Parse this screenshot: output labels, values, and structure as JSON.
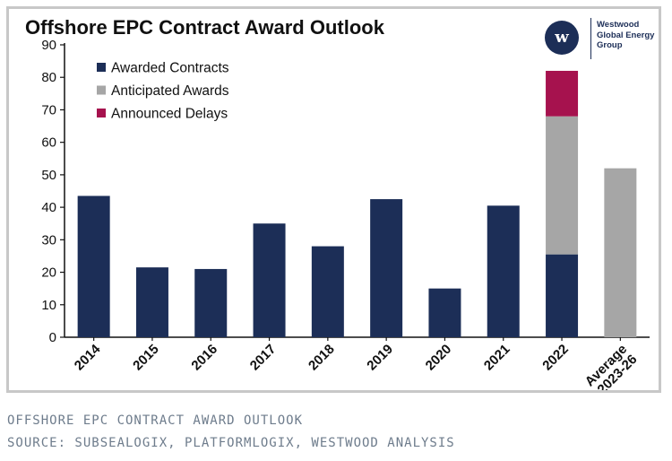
{
  "chart_data": {
    "type": "bar",
    "stacked": true,
    "title": "Offshore EPC Contract Award Outlook",
    "xlabel": "",
    "ylabel": "",
    "ylim": [
      0,
      90
    ],
    "yticks": [
      0,
      10,
      20,
      30,
      40,
      50,
      60,
      70,
      80,
      90
    ],
    "grid": false,
    "legend_position": "top-left",
    "categories": [
      "2014",
      "2015",
      "2016",
      "2017",
      "2018",
      "2019",
      "2020",
      "2021",
      "2022",
      "Average 2023-26"
    ],
    "series": [
      {
        "name": "Awarded Contracts",
        "color": "#1c2e57",
        "values": [
          43.5,
          21.5,
          21,
          35,
          28,
          42.5,
          15,
          40.5,
          25.5,
          0
        ]
      },
      {
        "name": "Anticipated Awards",
        "color": "#a6a6a6",
        "values": [
          0,
          0,
          0,
          0,
          0,
          0,
          0,
          0,
          42.5,
          52
        ]
      },
      {
        "name": "Announced Delays",
        "color": "#a6124e",
        "values": [
          0,
          0,
          0,
          0,
          0,
          0,
          0,
          0,
          14,
          0
        ]
      }
    ]
  },
  "logo": {
    "icon_name": "westwood-w-logo-icon",
    "letter": "w",
    "lines": [
      "Westwood",
      "Global Energy",
      "Group"
    ]
  },
  "captions": {
    "line1": "OFFSHORE EPC CONTRACT AWARD OUTLOOK",
    "line2": "SOURCE: SUBSEALOGIX, PLATFORMLOGIX, WESTWOOD ANALYSIS"
  }
}
